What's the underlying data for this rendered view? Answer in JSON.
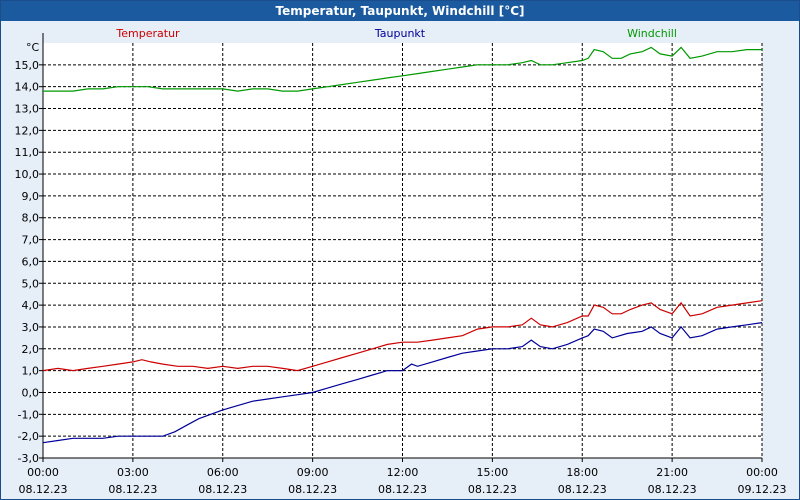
{
  "window": {
    "title": "Temperatur, Taupunkt, Windchill [°C]"
  },
  "chart_data": {
    "type": "line",
    "title": "Temperatur, Taupunkt, Windchill [°C]",
    "ylabel": "°C",
    "xlabel": "",
    "ylim": [
      -3.0,
      16.0
    ],
    "xlim_hours": [
      0,
      24
    ],
    "grid": true,
    "legend": "top",
    "y_ticks": [
      "-3,0",
      "-2,0",
      "-1,0",
      "0,0",
      "1,0",
      "2,0",
      "3,0",
      "4,0",
      "5,0",
      "6,0",
      "7,0",
      "8,0",
      "9,0",
      "10,0",
      "11,0",
      "12,0",
      "13,0",
      "14,0",
      "15,0"
    ],
    "x_ticks": [
      {
        "time": "00:00",
        "date": "08.12.23"
      },
      {
        "time": "03:00",
        "date": "08.12.23"
      },
      {
        "time": "06:00",
        "date": "08.12.23"
      },
      {
        "time": "09:00",
        "date": "08.12.23"
      },
      {
        "time": "12:00",
        "date": "08.12.23"
      },
      {
        "time": "15:00",
        "date": "08.12.23"
      },
      {
        "time": "18:00",
        "date": "08.12.23"
      },
      {
        "time": "21:00",
        "date": "08.12.23"
      },
      {
        "time": "00:00",
        "date": "09.12.23"
      }
    ],
    "series": [
      {
        "name": "Temperatur",
        "color": "#cc0000",
        "points": [
          [
            0,
            1.0
          ],
          [
            0.5,
            1.1
          ],
          [
            1,
            1.0
          ],
          [
            1.5,
            1.1
          ],
          [
            2,
            1.2
          ],
          [
            2.5,
            1.3
          ],
          [
            3,
            1.4
          ],
          [
            3.3,
            1.5
          ],
          [
            3.6,
            1.4
          ],
          [
            4,
            1.3
          ],
          [
            4.5,
            1.2
          ],
          [
            5,
            1.2
          ],
          [
            5.5,
            1.1
          ],
          [
            6,
            1.2
          ],
          [
            6.5,
            1.1
          ],
          [
            7,
            1.2
          ],
          [
            7.5,
            1.2
          ],
          [
            8,
            1.1
          ],
          [
            8.5,
            1.0
          ],
          [
            9,
            1.2
          ],
          [
            9.5,
            1.4
          ],
          [
            10,
            1.6
          ],
          [
            10.5,
            1.8
          ],
          [
            11,
            2.0
          ],
          [
            11.5,
            2.2
          ],
          [
            12,
            2.3
          ],
          [
            12.5,
            2.3
          ],
          [
            13,
            2.4
          ],
          [
            13.5,
            2.5
          ],
          [
            14,
            2.6
          ],
          [
            14.5,
            2.9
          ],
          [
            15,
            3.0
          ],
          [
            15.5,
            3.0
          ],
          [
            16,
            3.1
          ],
          [
            16.3,
            3.4
          ],
          [
            16.6,
            3.1
          ],
          [
            17,
            3.0
          ],
          [
            17.5,
            3.2
          ],
          [
            18,
            3.5
          ],
          [
            18.2,
            3.5
          ],
          [
            18.4,
            4.0
          ],
          [
            18.7,
            3.9
          ],
          [
            19,
            3.6
          ],
          [
            19.3,
            3.6
          ],
          [
            19.6,
            3.8
          ],
          [
            20,
            4.0
          ],
          [
            20.3,
            4.1
          ],
          [
            20.6,
            3.8
          ],
          [
            21,
            3.6
          ],
          [
            21.3,
            4.1
          ],
          [
            21.6,
            3.5
          ],
          [
            22,
            3.6
          ],
          [
            22.5,
            3.9
          ],
          [
            23,
            4.0
          ],
          [
            23.5,
            4.1
          ],
          [
            24,
            4.2
          ]
        ]
      },
      {
        "name": "Taupunkt",
        "color": "#000099",
        "points": [
          [
            0,
            -2.3
          ],
          [
            0.5,
            -2.2
          ],
          [
            1,
            -2.1
          ],
          [
            1.5,
            -2.1
          ],
          [
            2,
            -2.1
          ],
          [
            2.5,
            -2.0
          ],
          [
            3,
            -2.0
          ],
          [
            3.5,
            -2.0
          ],
          [
            4,
            -2.0
          ],
          [
            4.4,
            -1.8
          ],
          [
            4.8,
            -1.5
          ],
          [
            5.2,
            -1.2
          ],
          [
            5.6,
            -1.0
          ],
          [
            6,
            -0.8
          ],
          [
            6.5,
            -0.6
          ],
          [
            7,
            -0.4
          ],
          [
            7.5,
            -0.3
          ],
          [
            8,
            -0.2
          ],
          [
            8.5,
            -0.1
          ],
          [
            9,
            0.0
          ],
          [
            9.5,
            0.2
          ],
          [
            10,
            0.4
          ],
          [
            10.5,
            0.6
          ],
          [
            11,
            0.8
          ],
          [
            11.5,
            1.0
          ],
          [
            12,
            1.0
          ],
          [
            12.3,
            1.3
          ],
          [
            12.5,
            1.2
          ],
          [
            13,
            1.4
          ],
          [
            13.5,
            1.6
          ],
          [
            14,
            1.8
          ],
          [
            14.5,
            1.9
          ],
          [
            15,
            2.0
          ],
          [
            15.5,
            2.0
          ],
          [
            16,
            2.1
          ],
          [
            16.3,
            2.4
          ],
          [
            16.6,
            2.1
          ],
          [
            17,
            2.0
          ],
          [
            17.5,
            2.2
          ],
          [
            18,
            2.5
          ],
          [
            18.2,
            2.6
          ],
          [
            18.4,
            2.9
          ],
          [
            18.7,
            2.8
          ],
          [
            19,
            2.5
          ],
          [
            19.5,
            2.7
          ],
          [
            20,
            2.8
          ],
          [
            20.3,
            3.0
          ],
          [
            20.6,
            2.7
          ],
          [
            21,
            2.5
          ],
          [
            21.3,
            3.0
          ],
          [
            21.6,
            2.5
          ],
          [
            22,
            2.6
          ],
          [
            22.5,
            2.9
          ],
          [
            23,
            3.0
          ],
          [
            23.5,
            3.1
          ],
          [
            24,
            3.2
          ]
        ]
      },
      {
        "name": "Windchill",
        "color": "#009900",
        "points": [
          [
            0,
            13.8
          ],
          [
            0.5,
            13.8
          ],
          [
            1,
            13.8
          ],
          [
            1.5,
            13.9
          ],
          [
            2,
            13.9
          ],
          [
            2.5,
            14.0
          ],
          [
            3,
            14.0
          ],
          [
            3.5,
            14.0
          ],
          [
            4,
            13.9
          ],
          [
            4.5,
            13.9
          ],
          [
            5,
            13.9
          ],
          [
            5.5,
            13.9
          ],
          [
            6,
            13.9
          ],
          [
            6.5,
            13.8
          ],
          [
            7,
            13.9
          ],
          [
            7.5,
            13.9
          ],
          [
            8,
            13.8
          ],
          [
            8.5,
            13.8
          ],
          [
            9,
            13.9
          ],
          [
            9.5,
            14.0
          ],
          [
            10,
            14.1
          ],
          [
            10.5,
            14.2
          ],
          [
            11,
            14.3
          ],
          [
            11.5,
            14.4
          ],
          [
            12,
            14.5
          ],
          [
            12.5,
            14.6
          ],
          [
            13,
            14.7
          ],
          [
            13.5,
            14.8
          ],
          [
            14,
            14.9
          ],
          [
            14.5,
            15.0
          ],
          [
            15,
            15.0
          ],
          [
            15.5,
            15.0
          ],
          [
            16,
            15.1
          ],
          [
            16.3,
            15.2
          ],
          [
            16.6,
            15.0
          ],
          [
            17,
            15.0
          ],
          [
            17.5,
            15.1
          ],
          [
            18,
            15.2
          ],
          [
            18.2,
            15.3
          ],
          [
            18.4,
            15.7
          ],
          [
            18.7,
            15.6
          ],
          [
            19,
            15.3
          ],
          [
            19.3,
            15.3
          ],
          [
            19.6,
            15.5
          ],
          [
            20,
            15.6
          ],
          [
            20.3,
            15.8
          ],
          [
            20.6,
            15.5
          ],
          [
            21,
            15.4
          ],
          [
            21.3,
            15.8
          ],
          [
            21.6,
            15.3
          ],
          [
            22,
            15.4
          ],
          [
            22.5,
            15.6
          ],
          [
            23,
            15.6
          ],
          [
            23.5,
            15.7
          ],
          [
            24,
            15.7
          ]
        ]
      }
    ]
  }
}
